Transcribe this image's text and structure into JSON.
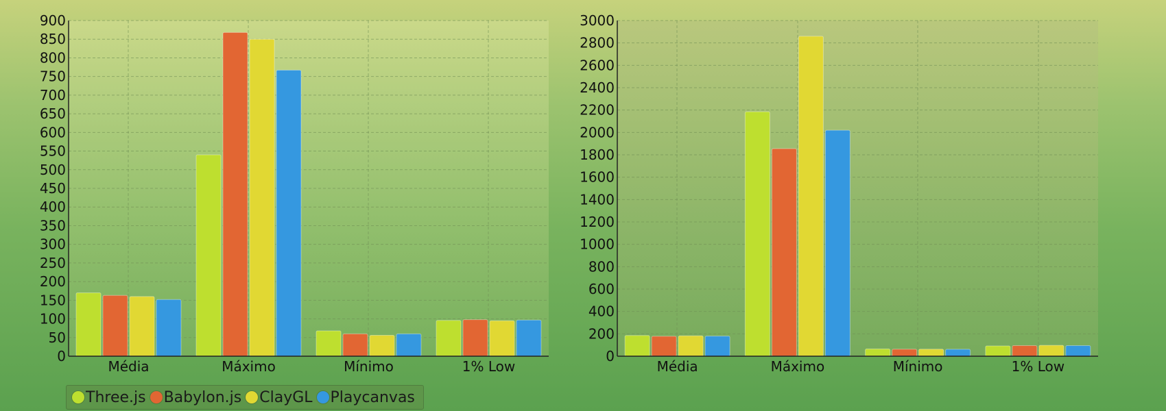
{
  "colors": {
    "Three.js": "#bedf2f",
    "Babylon.js": "#e26633",
    "ClayGL": "#e1d833",
    "Playcanvas": "#3598e0"
  },
  "legend": [
    "Three.js",
    "Babylon.js",
    "ClayGL",
    "Playcanvas"
  ],
  "chart_data": [
    {
      "type": "bar",
      "categories": [
        "Média",
        "Máximo",
        "Mínimo",
        "1% Low"
      ],
      "ylim": [
        0,
        900
      ],
      "ytick_step": 50,
      "grid": true,
      "legend_position": "bottom-left",
      "series": [
        {
          "name": "Three.js",
          "values": [
            170,
            540,
            68,
            96
          ]
        },
        {
          "name": "Babylon.js",
          "values": [
            163,
            868,
            60,
            98
          ]
        },
        {
          "name": "ClayGL",
          "values": [
            160,
            850,
            56,
            95
          ]
        },
        {
          "name": "Playcanvas",
          "values": [
            152,
            767,
            60,
            97
          ]
        }
      ]
    },
    {
      "type": "bar",
      "categories": [
        "Média",
        "Máximo",
        "Mínimo",
        "1% Low"
      ],
      "ylim": [
        0,
        3000
      ],
      "ytick_step": 200,
      "grid": true,
      "series": [
        {
          "name": "Three.js",
          "values": [
            185,
            2185,
            65,
            92
          ]
        },
        {
          "name": "Babylon.js",
          "values": [
            178,
            1855,
            63,
            95
          ]
        },
        {
          "name": "ClayGL",
          "values": [
            182,
            2860,
            63,
            97
          ]
        },
        {
          "name": "Playcanvas",
          "values": [
            180,
            2020,
            62,
            95
          ]
        }
      ]
    }
  ]
}
